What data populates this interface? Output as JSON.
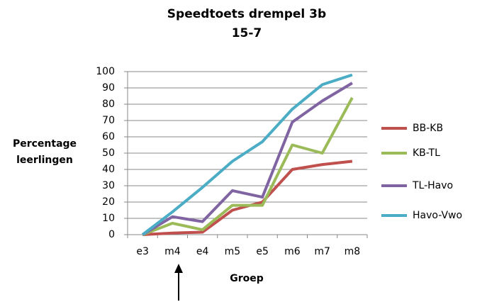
{
  "chart_data": {
    "type": "line",
    "title": "Speedtoets drempel 3b",
    "subtitle": "15-7",
    "ylabel": [
      "Percentage",
      "leerlingen"
    ],
    "xlabel": "Groep",
    "categories": [
      "e3",
      "m4",
      "e4",
      "m5",
      "e5",
      "m6",
      "m7",
      "m8"
    ],
    "series": [
      {
        "name": "BB-KB",
        "color": "#c0504d",
        "values": [
          0,
          1,
          1.5,
          15,
          20,
          40,
          43,
          45
        ]
      },
      {
        "name": "KB-TL",
        "color": "#9bbb59",
        "values": [
          0,
          7,
          3,
          18,
          18,
          55,
          50,
          84
        ]
      },
      {
        "name": "TL-Havo",
        "color": "#8064a2",
        "values": [
          0,
          11,
          8,
          27,
          23,
          69,
          82,
          93
        ]
      },
      {
        "name": "Havo-Vwo",
        "color": "#4bacc6",
        "values": [
          0,
          14,
          29,
          45,
          57,
          77,
          92,
          98
        ]
      }
    ],
    "ylim": [
      0,
      100
    ],
    "yticks": [
      0,
      10,
      20,
      30,
      40,
      50,
      60,
      70,
      80,
      90,
      100
    ],
    "grid": true,
    "legend": "right"
  }
}
